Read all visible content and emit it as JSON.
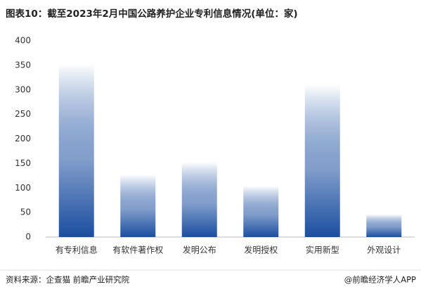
{
  "chart_data": {
    "type": "bar",
    "title": "图表10：截至2023年2月中国公路养护企业专利信息情况(单位：家)",
    "categories": [
      "有专利信息",
      "有软件著作权",
      "发明公布",
      "发明授权",
      "实用新型",
      "外观设计"
    ],
    "values": [
      353,
      127,
      153,
      104,
      311,
      46
    ],
    "color": "#1b4ea0",
    "ylim": [
      0,
      400
    ],
    "yticks": [
      0,
      50,
      100,
      150,
      200,
      250,
      300,
      350,
      400
    ],
    "grid": false,
    "source": "资料来源：企查猫 前瞻产业研究院",
    "credit": "@前瞻经济学人APP"
  }
}
